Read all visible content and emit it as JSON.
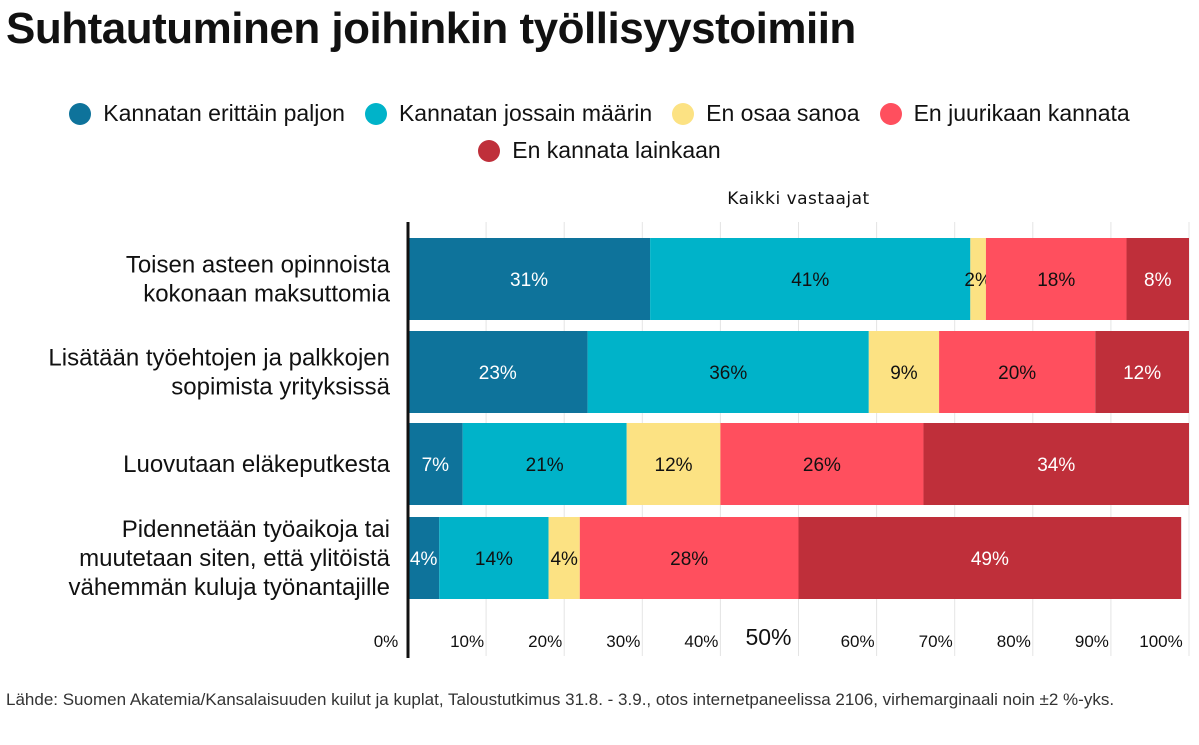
{
  "title": "Suhtautuminen joihinkin työllisyystoimiin",
  "legend": [
    {
      "label": "Kannatan erittäin paljon",
      "color": "#0e739b"
    },
    {
      "label": "Kannatan jossain määrin",
      "color": "#00b3c9"
    },
    {
      "label": "En osaa sanoa",
      "color": "#fce283"
    },
    {
      "label": "En juurikaan kannata",
      "color": "#ff4f5e"
    },
    {
      "label": "En kannata lainkaan",
      "color": "#bf2f3a"
    }
  ],
  "source": "Lähde: Suomen Akatemia/Kansalaisuuden kuilut ja kuplat, Taloustutkimus 31.8. - 3.9., otos internetpaneelissa 2106, virhemarginaali noin ±2 %-yks.",
  "chart_data": {
    "type": "bar",
    "orientation": "horizontal",
    "stacked": true,
    "subtitle": "Kaikki vastaajat",
    "categories": [
      [
        "Toisen asteen opinnoista",
        "kokonaan maksuttomia"
      ],
      [
        "Lisätään työehtojen ja palkkojen",
        "sopimista yrityksissä"
      ],
      [
        "Luovutaan eläkeputkesta"
      ],
      [
        "Pidennetään työaikoja tai",
        "muutetaan siten, että ylitöistä",
        "vähemmän kuluja työnantajille"
      ]
    ],
    "series": [
      {
        "name": "Kannatan erittäin paljon",
        "color": "#0e739b",
        "label_color": "#ffffff",
        "values": [
          31,
          23,
          7,
          4
        ]
      },
      {
        "name": "Kannatan jossain määrin",
        "color": "#00b3c9",
        "label_color": "#111111",
        "values": [
          41,
          36,
          21,
          14
        ]
      },
      {
        "name": "En osaa sanoa",
        "color": "#fce283",
        "label_color": "#111111",
        "values": [
          2,
          9,
          12,
          4
        ]
      },
      {
        "name": "En juurikaan kannata",
        "color": "#ff4f5e",
        "label_color": "#111111",
        "values": [
          18,
          20,
          26,
          28
        ]
      },
      {
        "name": "En kannata lainkaan",
        "color": "#bf2f3a",
        "label_color": "#ffffff",
        "values": [
          8,
          12,
          34,
          49
        ]
      }
    ],
    "value_suffix": "%",
    "xlim": [
      0,
      100
    ],
    "x_ticks": [
      0,
      10,
      20,
      30,
      40,
      50,
      60,
      70,
      80,
      90,
      100
    ],
    "x_tick_labels": [
      "0%",
      "10%",
      "20%",
      "30%",
      "40%",
      "50%",
      "60%",
      "70%",
      "80%",
      "90%",
      "100%"
    ],
    "highlight_tick": 50,
    "grid": true
  }
}
